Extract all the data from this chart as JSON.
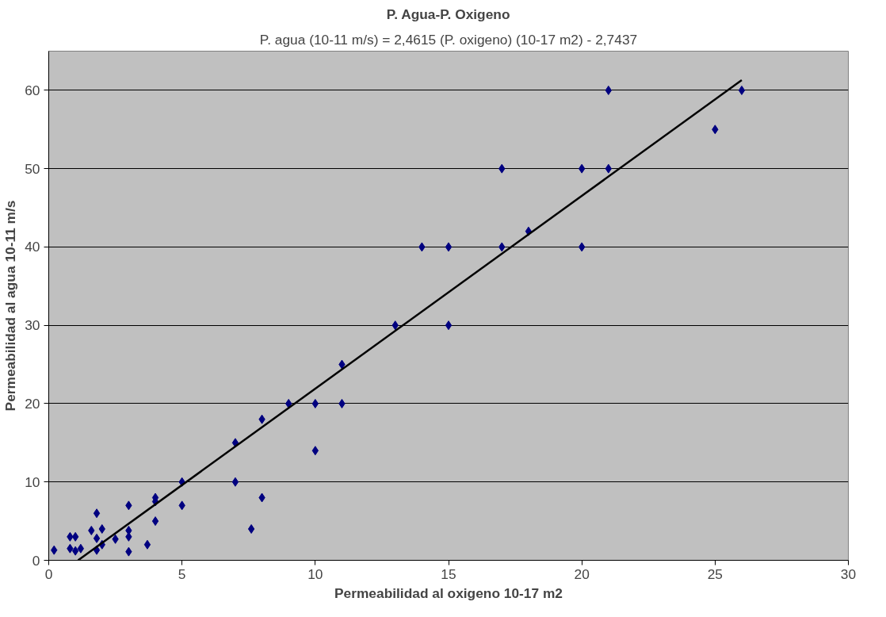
{
  "chart_data": {
    "type": "scatter",
    "title": "P. Agua-P. Oxigeno",
    "subtitle": "P. agua (10-11 m/s) = 2,4615 (P. oxigeno) (10-17 m2) - 2,7437",
    "xlabel": "Permeabilidad al oxigeno 10-17 m2",
    "ylabel": "Permeabilidad al agua 10-11 m/s",
    "x": [
      0.2,
      0.8,
      0.8,
      1,
      1,
      1.2,
      1.6,
      1.8,
      1.8,
      1.8,
      2,
      2,
      2.5,
      3,
      3,
      3,
      3,
      3.7,
      4,
      4,
      4,
      5,
      5,
      7,
      7,
      7.6,
      8,
      8,
      9,
      10,
      10,
      11,
      11,
      13,
      14,
      15,
      15,
      17,
      17,
      18,
      20,
      20,
      21,
      21,
      25,
      26
    ],
    "series": [
      {
        "color": "#000080",
        "marker": "diamond",
        "values": [
          1.3,
          1.5,
          3,
          3,
          1.2,
          1.5,
          3.8,
          6,
          2.8,
          1.3,
          4,
          2,
          2.7,
          7,
          3.8,
          3,
          1.1,
          2,
          8,
          7.5,
          5,
          10,
          7,
          15,
          10,
          4,
          18,
          8,
          20,
          20,
          14,
          25,
          20,
          30,
          40,
          40,
          30,
          50,
          40,
          42,
          50,
          40,
          60,
          50,
          55,
          60
        ]
      },
      {
        "type": "line",
        "color": "#000000",
        "line_style": "solid",
        "x": [
          1.1,
          26
        ],
        "values": [
          0,
          61.3
        ]
      }
    ],
    "xlim": [
      0,
      30
    ],
    "ylim": [
      0,
      65
    ],
    "xticks": [
      0,
      5,
      10,
      15,
      20,
      25,
      30
    ],
    "yticks": [
      0,
      10,
      20,
      30,
      40,
      50,
      60
    ],
    "grid": "y"
  }
}
